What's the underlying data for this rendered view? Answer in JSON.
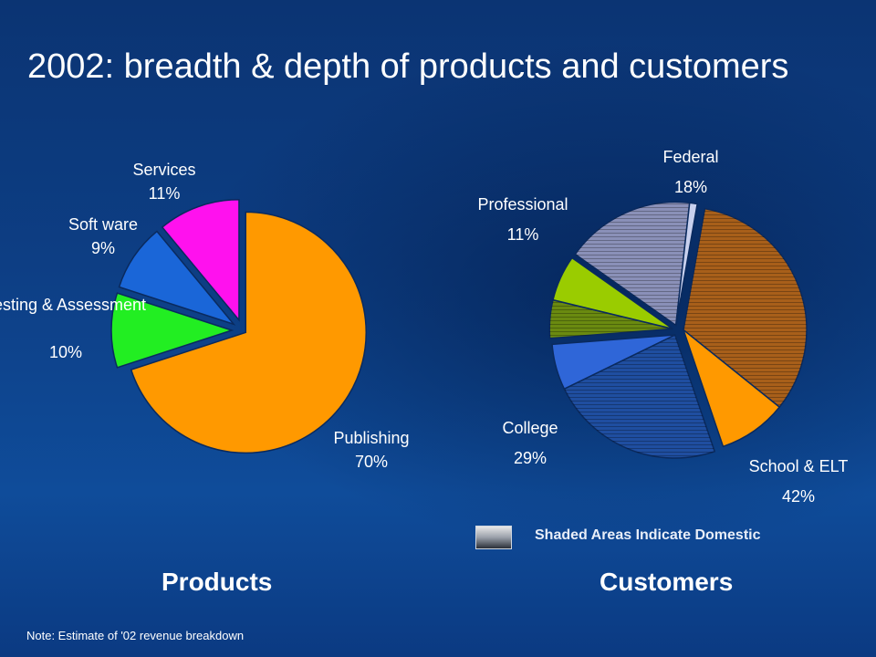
{
  "title": "2002: breadth & depth of products and customers",
  "sections": {
    "products": "Products",
    "customers": "Customers"
  },
  "legend": {
    "text": "Shaded Areas Indicate Domestic"
  },
  "note": "Note:  Estimate of '02 revenue breakdown",
  "colors": {
    "publishing": "#ff9900",
    "testing": "#22ee22",
    "software": "#1a66d8",
    "services": "#ff11ee",
    "school_domestic": "#a85f1a",
    "school_international": "#ff9900",
    "college_domestic": "#1f4ea0",
    "college_international": "#2f66d8",
    "professional_domestic": "#6a8a10",
    "professional_international": "#9acc00",
    "federal_domestic": "#8a90b8",
    "federal_international": "#c8d0ee"
  },
  "chart_data": [
    {
      "type": "pie",
      "title": "Products",
      "slices": [
        {
          "label": "Publishing",
          "value": 70,
          "display": "70%"
        },
        {
          "label": "Testing & Assessment",
          "value": 10,
          "display": "10%"
        },
        {
          "label": "Soft ware",
          "value": 9,
          "display": "9%"
        },
        {
          "label": "Services",
          "value": 11,
          "display": "11%"
        }
      ]
    },
    {
      "type": "pie",
      "title": "Customers",
      "segments": [
        {
          "label": "School & ELT",
          "value": 42,
          "display": "42%",
          "domestic_share": 33,
          "international_share": 9
        },
        {
          "label": "College",
          "value": 29,
          "display": "29%",
          "domestic_share": 23,
          "international_share": 6
        },
        {
          "label": "Professional",
          "value": 11,
          "display": "11%",
          "domestic_share": 5,
          "international_share": 6
        },
        {
          "label": "Federal",
          "value": 18,
          "display": "18%",
          "domestic_share": 17,
          "international_share": 1
        }
      ]
    }
  ]
}
